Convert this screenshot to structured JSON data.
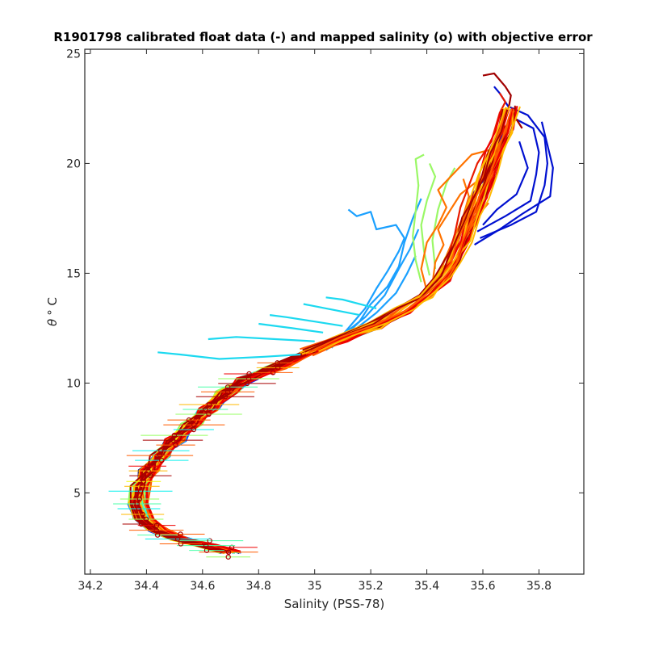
{
  "chart_data": {
    "type": "line",
    "title": "R1901798 calibrated float data (-) and mapped salinity (o) with objective error",
    "xlabel": "Salinity (PSS-78)",
    "ylabel_symbol": "θ",
    "ylabel_suffix": "° C",
    "xlim": [
      34.18,
      35.96
    ],
    "ylim": [
      1.3,
      25.2
    ],
    "x_ticks": [
      "34.2",
      "34.4",
      "34.6",
      "34.8",
      "35",
      "35.2",
      "35.4",
      "35.6",
      "35.8"
    ],
    "x_tick_values": [
      34.2,
      34.4,
      34.6,
      34.8,
      35.0,
      35.2,
      35.4,
      35.6,
      35.8
    ],
    "y_ticks": [
      "5",
      "10",
      "15",
      "20",
      "25"
    ],
    "y_tick_values": [
      5,
      10,
      15,
      20,
      25
    ],
    "grid": false,
    "colormap": "jet",
    "core_profile": [
      [
        34.7,
        2.3
      ],
      [
        34.62,
        2.6
      ],
      [
        34.52,
        2.9
      ],
      [
        34.44,
        3.3
      ],
      [
        34.39,
        3.8
      ],
      [
        34.37,
        4.5
      ],
      [
        34.38,
        5.3
      ],
      [
        34.41,
        6.0
      ],
      [
        34.45,
        6.7
      ],
      [
        34.5,
        7.4
      ],
      [
        34.56,
        8.1
      ],
      [
        34.62,
        8.8
      ],
      [
        34.69,
        9.6
      ],
      [
        34.76,
        10.2
      ],
      [
        34.86,
        10.7
      ],
      [
        34.98,
        11.4
      ],
      [
        35.1,
        12.0
      ],
      [
        35.22,
        12.6
      ],
      [
        35.32,
        13.3
      ],
      [
        35.4,
        14.0
      ],
      [
        35.46,
        14.8
      ],
      [
        35.5,
        15.6
      ],
      [
        35.53,
        16.5
      ],
      [
        35.56,
        17.5
      ],
      [
        35.59,
        18.5
      ],
      [
        35.62,
        19.5
      ],
      [
        35.65,
        20.5
      ],
      [
        35.68,
        21.5
      ],
      [
        35.7,
        22.5
      ]
    ],
    "branches": {
      "blue": [
        [
          [
            35.59,
            16.6
          ],
          [
            35.7,
            17.2
          ],
          [
            35.79,
            17.8
          ],
          [
            35.82,
            19.0
          ],
          [
            35.83,
            20.0
          ],
          [
            35.82,
            21.2
          ],
          [
            35.76,
            22.2
          ],
          [
            35.69,
            22.6
          ],
          [
            35.66,
            23.2
          ],
          [
            35.64,
            23.5
          ]
        ],
        [
          [
            35.58,
            16.9
          ],
          [
            35.68,
            17.6
          ],
          [
            35.77,
            18.3
          ],
          [
            35.79,
            19.5
          ],
          [
            35.8,
            20.5
          ],
          [
            35.78,
            21.6
          ],
          [
            35.72,
            22.0
          ]
        ],
        [
          [
            35.6,
            17.2
          ],
          [
            35.65,
            17.9
          ],
          [
            35.72,
            18.6
          ],
          [
            35.76,
            19.8
          ],
          [
            35.73,
            21.0
          ]
        ],
        [
          [
            35.57,
            16.3
          ],
          [
            35.66,
            17.0
          ],
          [
            35.74,
            17.7
          ],
          [
            35.84,
            18.5
          ],
          [
            35.85,
            19.8
          ],
          [
            35.81,
            21.9
          ]
        ],
        [
          [
            35.55,
            18.4
          ],
          [
            35.6,
            19.2
          ],
          [
            35.63,
            20.0
          ],
          [
            35.66,
            21.1
          ],
          [
            35.7,
            21.8
          ]
        ]
      ],
      "lightblue": [
        [
          [
            35.06,
            11.6
          ],
          [
            35.12,
            12.5
          ],
          [
            35.18,
            13.4
          ],
          [
            35.22,
            14.3
          ],
          [
            35.26,
            15.1
          ],
          [
            35.3,
            16.0
          ],
          [
            35.32,
            16.6
          ],
          [
            35.29,
            17.2
          ],
          [
            35.22,
            17.0
          ],
          [
            35.2,
            17.8
          ],
          [
            35.15,
            17.6
          ],
          [
            35.12,
            17.9
          ]
        ],
        [
          [
            35.08,
            11.8
          ],
          [
            35.16,
            12.8
          ],
          [
            35.2,
            13.6
          ],
          [
            35.26,
            14.4
          ],
          [
            35.3,
            15.3
          ],
          [
            35.32,
            16.4
          ],
          [
            35.35,
            17.5
          ],
          [
            35.38,
            18.4
          ]
        ],
        [
          [
            35.1,
            12.2
          ],
          [
            35.18,
            13.0
          ],
          [
            35.25,
            14.0
          ],
          [
            35.3,
            15.2
          ],
          [
            35.34,
            16.1
          ],
          [
            35.37,
            17.0
          ]
        ],
        [
          [
            35.04,
            11.5
          ],
          [
            35.14,
            12.4
          ],
          [
            35.22,
            13.2
          ],
          [
            35.29,
            14.1
          ],
          [
            35.33,
            15.0
          ],
          [
            35.36,
            15.8
          ]
        ]
      ],
      "cyan": [
        [
          [
            34.95,
            11.3
          ],
          [
            34.82,
            11.2
          ],
          [
            34.66,
            11.1
          ],
          [
            34.52,
            11.3
          ],
          [
            34.44,
            11.4
          ]
        ],
        [
          [
            35.0,
            11.9
          ],
          [
            34.86,
            12.0
          ],
          [
            34.72,
            12.1
          ],
          [
            34.62,
            12.0
          ]
        ],
        [
          [
            35.03,
            12.3
          ],
          [
            34.92,
            12.5
          ],
          [
            34.8,
            12.7
          ]
        ],
        [
          [
            35.1,
            12.6
          ],
          [
            35.0,
            12.8
          ],
          [
            34.9,
            13.0
          ],
          [
            34.84,
            13.1
          ]
        ],
        [
          [
            35.16,
            13.1
          ],
          [
            35.04,
            13.4
          ],
          [
            34.96,
            13.6
          ]
        ],
        [
          [
            35.22,
            13.4
          ],
          [
            35.1,
            13.8
          ],
          [
            35.04,
            13.9
          ]
        ]
      ],
      "green": [
        [
          [
            35.38,
            14.6
          ],
          [
            35.36,
            15.6
          ],
          [
            35.35,
            16.7
          ],
          [
            35.36,
            17.8
          ],
          [
            35.37,
            19.0
          ],
          [
            35.36,
            20.2
          ],
          [
            35.39,
            20.4
          ]
        ],
        [
          [
            35.41,
            14.9
          ],
          [
            35.39,
            16.0
          ],
          [
            35.38,
            17.2
          ],
          [
            35.4,
            18.3
          ],
          [
            35.43,
            19.4
          ],
          [
            35.41,
            20.0
          ]
        ],
        [
          [
            35.43,
            15.2
          ],
          [
            35.42,
            16.5
          ],
          [
            35.44,
            17.9
          ],
          [
            35.47,
            19.1
          ],
          [
            35.5,
            19.8
          ]
        ]
      ],
      "orange": [
        [
          [
            35.4,
            14.2
          ],
          [
            35.38,
            15.2
          ],
          [
            35.4,
            16.4
          ],
          [
            35.44,
            17.2
          ],
          [
            35.47,
            18.0
          ],
          [
            35.44,
            18.8
          ],
          [
            35.5,
            19.6
          ],
          [
            35.56,
            20.4
          ],
          [
            35.62,
            20.6
          ],
          [
            35.68,
            20.8
          ]
        ],
        [
          [
            35.42,
            14.5
          ],
          [
            35.43,
            15.5
          ],
          [
            35.46,
            16.3
          ],
          [
            35.44,
            17.0
          ],
          [
            35.48,
            17.8
          ],
          [
            35.52,
            18.6
          ],
          [
            35.58,
            19.2
          ]
        ],
        [
          [
            35.44,
            14.8
          ],
          [
            35.47,
            15.8
          ],
          [
            35.5,
            16.7
          ],
          [
            35.53,
            17.6
          ],
          [
            35.55,
            18.5
          ],
          [
            35.53,
            19.3
          ]
        ],
        [
          [
            35.46,
            15.0
          ],
          [
            35.5,
            16.0
          ],
          [
            35.55,
            16.8
          ],
          [
            35.58,
            17.6
          ],
          [
            35.62,
            18.2
          ]
        ]
      ],
      "red": [
        [
          [
            35.47,
            15.5
          ],
          [
            35.5,
            16.8
          ],
          [
            35.52,
            18.0
          ],
          [
            35.55,
            19.0
          ],
          [
            35.58,
            20.0
          ],
          [
            35.63,
            21.0
          ],
          [
            35.66,
            22.3
          ],
          [
            35.68,
            22.8
          ],
          [
            35.66,
            23.2
          ]
        ],
        [
          [
            35.5,
            15.9
          ],
          [
            35.53,
            17.2
          ],
          [
            35.56,
            18.4
          ],
          [
            35.6,
            19.5
          ],
          [
            35.64,
            20.5
          ],
          [
            35.67,
            21.5
          ],
          [
            35.71,
            22.2
          ]
        ],
        [
          [
            35.52,
            16.2
          ],
          [
            35.55,
            17.5
          ],
          [
            35.58,
            18.7
          ],
          [
            35.61,
            19.8
          ],
          [
            35.65,
            21.0
          ],
          [
            35.7,
            22.0
          ]
        ]
      ],
      "darkred": [
        [
          [
            35.54,
            16.6
          ],
          [
            35.57,
            17.8
          ],
          [
            35.6,
            19.0
          ],
          [
            35.63,
            20.2
          ],
          [
            35.66,
            21.4
          ],
          [
            35.69,
            22.4
          ],
          [
            35.7,
            23.1
          ],
          [
            35.68,
            23.5
          ],
          [
            35.64,
            24.1
          ],
          [
            35.6,
            24.0
          ]
        ],
        [
          [
            35.56,
            16.9
          ],
          [
            35.59,
            18.0
          ],
          [
            35.61,
            19.2
          ],
          [
            35.64,
            20.4
          ],
          [
            35.67,
            21.6
          ],
          [
            35.72,
            22.0
          ],
          [
            35.74,
            21.6
          ]
        ]
      ]
    },
    "palette": [
      "#00007f",
      "#0000d6",
      "#002cff",
      "#0090ff",
      "#0af0ee",
      "#4dffaa",
      "#96ff61",
      "#f0f90a",
      "#ffb900",
      "#ff5c00",
      "#ef0000",
      "#a80000"
    ]
  }
}
